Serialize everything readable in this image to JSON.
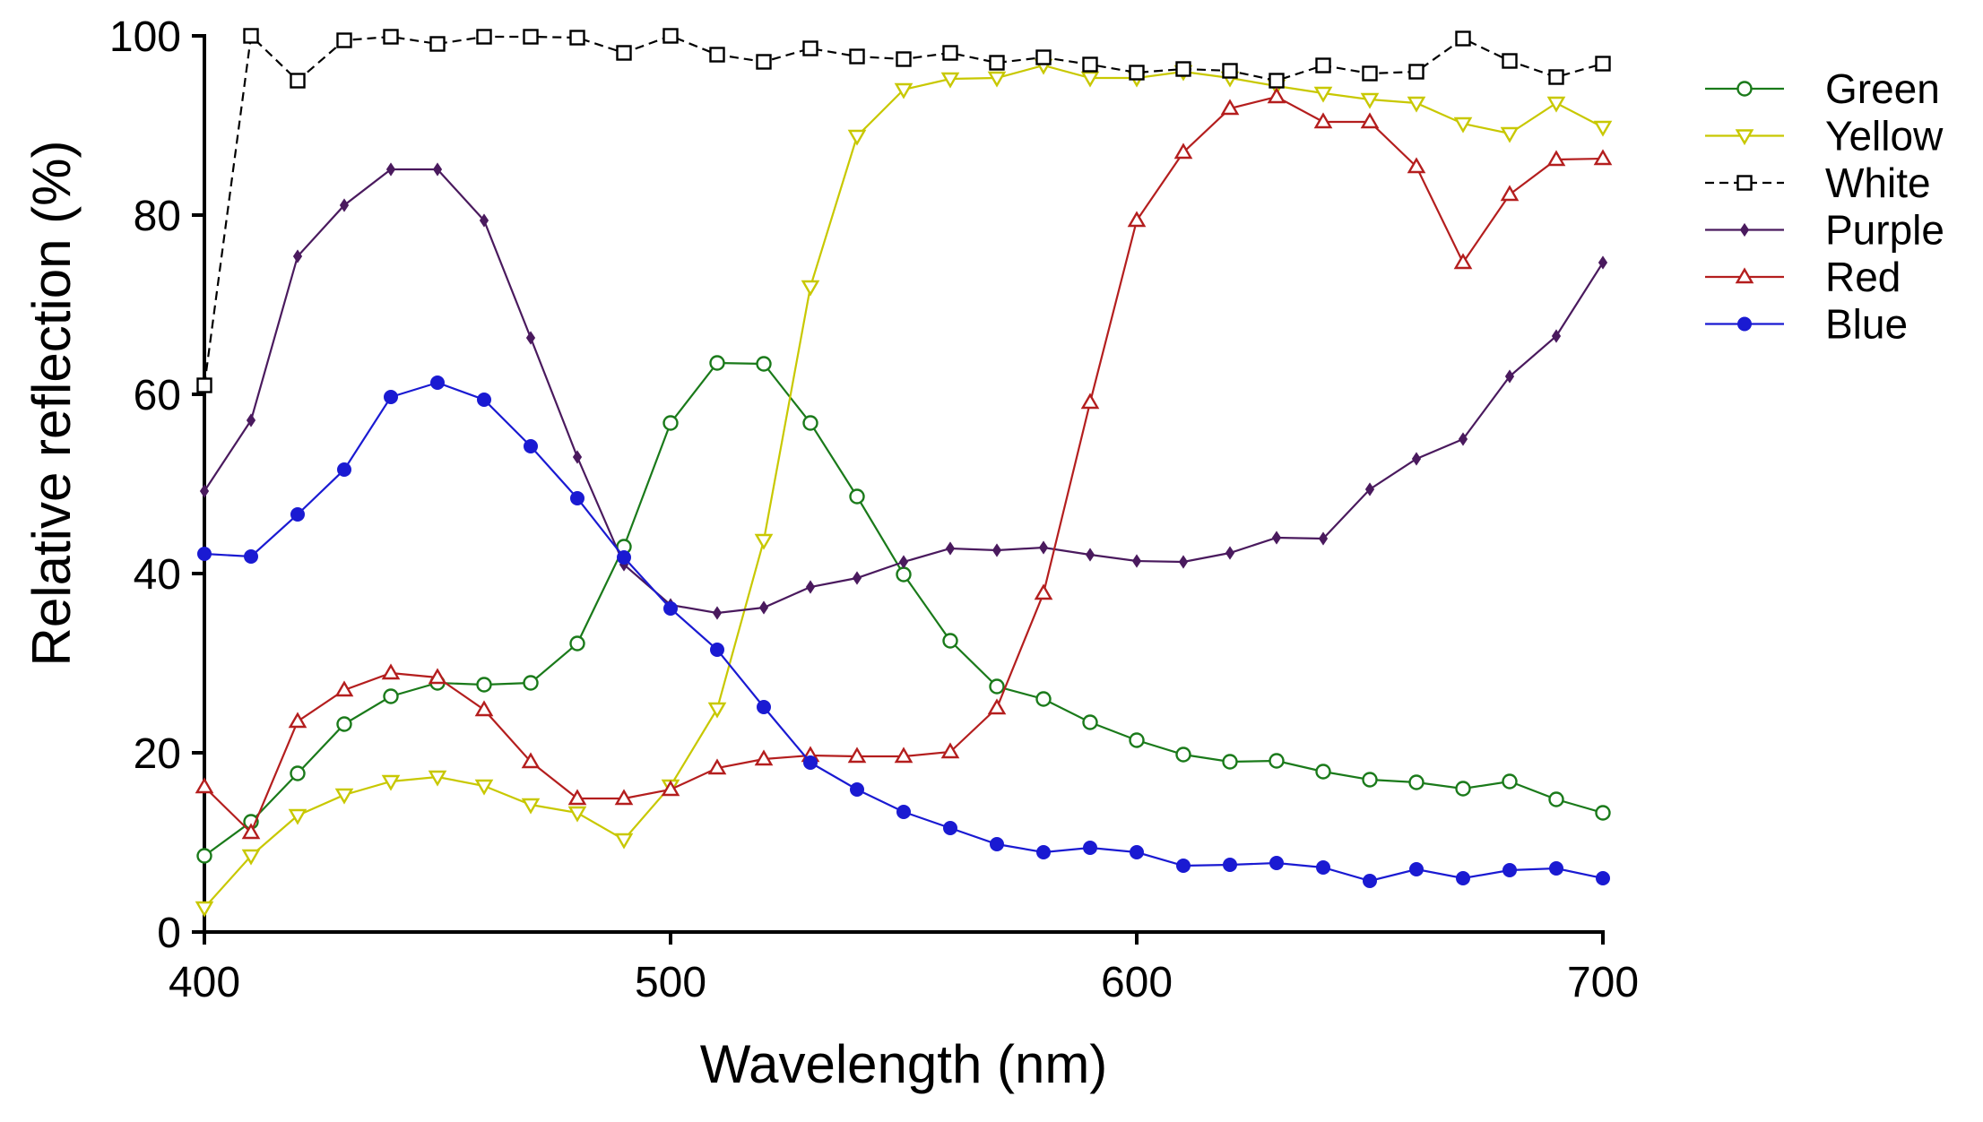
{
  "chart_data": {
    "type": "line",
    "title": "",
    "xlabel": "Wavelength (nm)",
    "ylabel": "Relative reflection (%)",
    "xlim": [
      400,
      700
    ],
    "ylim": [
      0,
      100
    ],
    "xticks": [
      400,
      500,
      600,
      700
    ],
    "yticks": [
      0,
      20,
      40,
      60,
      80,
      100
    ],
    "grid": false,
    "legend_position": "right",
    "x": [
      400,
      410,
      420,
      430,
      440,
      450,
      460,
      470,
      480,
      490,
      500,
      510,
      520,
      530,
      540,
      550,
      560,
      570,
      580,
      590,
      600,
      610,
      620,
      630,
      640,
      650,
      660,
      670,
      680,
      690,
      700
    ],
    "series": [
      {
        "name": "Green",
        "color": "#1a7a1a",
        "marker": "circle-open",
        "dashed": false,
        "values": [
          8.5,
          12.3,
          17.7,
          23.2,
          26.3,
          27.8,
          27.6,
          27.8,
          32.2,
          43.0,
          56.8,
          63.5,
          63.4,
          56.8,
          48.6,
          39.9,
          32.5,
          27.4,
          26.0,
          23.4,
          21.4,
          19.8,
          19.0,
          19.1,
          17.9,
          17.0,
          16.7,
          16.0,
          16.8,
          14.8,
          13.3
        ]
      },
      {
        "name": "Yellow",
        "color": "#c8c800",
        "marker": "triangle-down-open",
        "dashed": false,
        "values": [
          2.7,
          8.5,
          13.0,
          15.3,
          16.8,
          17.3,
          16.3,
          14.2,
          13.3,
          10.3,
          16.3,
          24.9,
          43.7,
          72.0,
          88.8,
          94.0,
          95.2,
          95.3,
          96.7,
          95.3,
          95.3,
          96.0,
          95.3,
          94.4,
          93.6,
          92.9,
          92.5,
          90.2,
          89.1,
          92.5,
          89.8
        ]
      },
      {
        "name": "White",
        "color": "#000000",
        "marker": "square-open",
        "dashed": true,
        "values": [
          61.0,
          100.0,
          95.0,
          99.5,
          99.9,
          99.1,
          99.9,
          99.9,
          99.8,
          98.1,
          100.0,
          97.9,
          97.1,
          98.6,
          97.7,
          97.4,
          98.1,
          97.0,
          97.6,
          96.8,
          95.9,
          96.3,
          96.1,
          95.0,
          96.7,
          95.8,
          96.0,
          99.7,
          97.2,
          95.4,
          96.9
        ]
      },
      {
        "name": "Purple",
        "color": "#4a1a5e",
        "marker": "diamond-filled",
        "dashed": false,
        "values": [
          49.2,
          57.1,
          75.4,
          81.1,
          85.1,
          85.1,
          79.4,
          66.3,
          53.0,
          41.0,
          36.5,
          35.6,
          36.2,
          38.5,
          39.5,
          41.3,
          42.8,
          42.6,
          42.9,
          42.1,
          41.4,
          41.3,
          42.3,
          44.0,
          43.9,
          49.4,
          52.8,
          55.0,
          62.0,
          66.5,
          74.7
        ]
      },
      {
        "name": "Red",
        "color": "#b41e1e",
        "marker": "triangle-up-open",
        "dashed": false,
        "values": [
          16.2,
          11.1,
          23.5,
          27.0,
          28.9,
          28.4,
          24.8,
          19.0,
          14.9,
          14.9,
          15.9,
          18.3,
          19.3,
          19.7,
          19.6,
          19.6,
          20.1,
          25.0,
          37.8,
          59.1,
          79.4,
          87.0,
          91.9,
          93.2,
          90.4,
          90.4,
          85.4,
          74.7,
          82.3,
          86.2,
          86.3
        ]
      },
      {
        "name": "Blue",
        "color": "#1a1ad2",
        "marker": "circle-filled",
        "dashed": false,
        "values": [
          42.2,
          41.9,
          46.6,
          51.6,
          59.7,
          61.3,
          59.4,
          54.2,
          48.4,
          41.8,
          36.1,
          31.5,
          25.1,
          18.9,
          15.9,
          13.4,
          11.6,
          9.8,
          8.9,
          9.4,
          8.9,
          7.4,
          7.5,
          7.7,
          7.2,
          5.7,
          7.0,
          6.0,
          6.9,
          7.1,
          6.0
        ]
      }
    ]
  }
}
